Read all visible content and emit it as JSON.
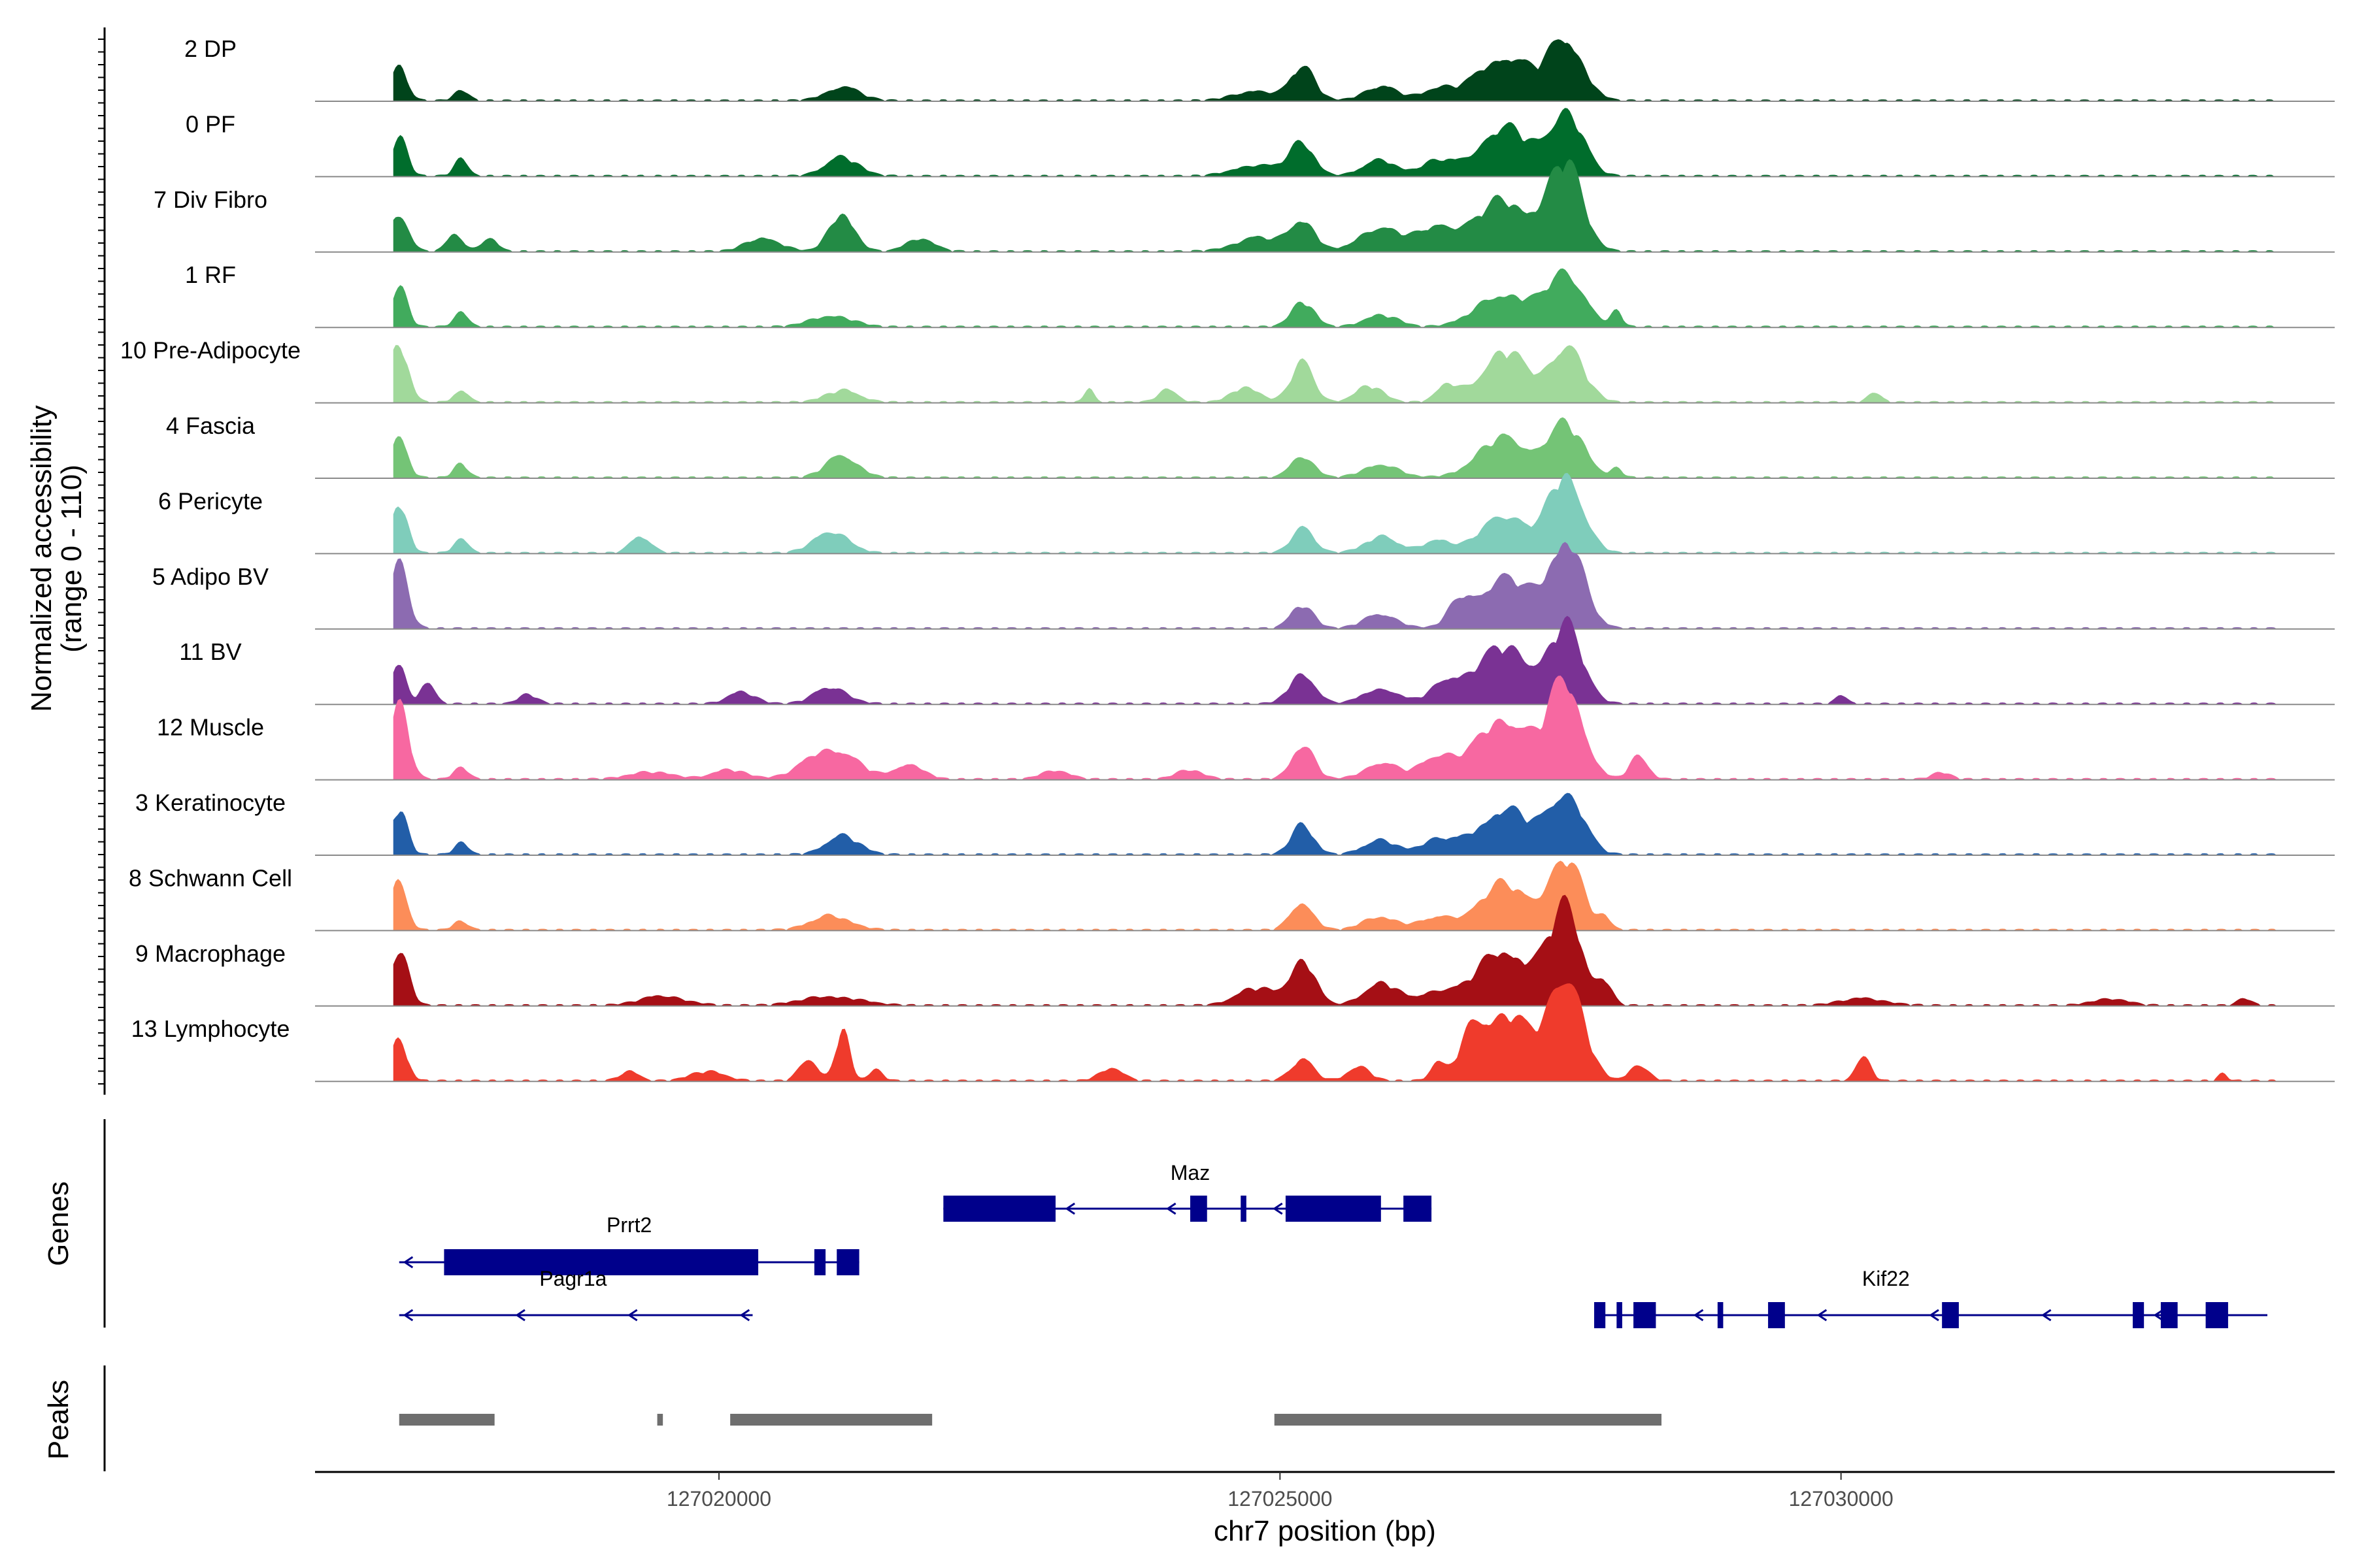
{
  "chart_data": {
    "type": "area",
    "title": "",
    "y_axis_label": "Normalized accessibility",
    "y_axis_range_label": "(range 0 - 110)",
    "ylim": [
      0,
      110
    ],
    "x_axis_label": "chr7 position (bp)",
    "xlim": [
      127016400,
      127034400
    ],
    "x_ticks": [
      127020000,
      127025000,
      127030000
    ],
    "x_tick_labels": [
      "127020000",
      "127025000",
      "127030000"
    ],
    "tracks": [
      {
        "name": "2 DP",
        "color": "#00441b",
        "peaks": [
          [
            127017150,
            30,
            70
          ],
          [
            127017700,
            10,
            60
          ],
          [
            127021100,
            12,
            150
          ],
          [
            127024800,
            8,
            200
          ],
          [
            127025200,
            28,
            110
          ],
          [
            127025900,
            12,
            150
          ],
          [
            127026400,
            10,
            140
          ],
          [
            127027000,
            40,
            240
          ],
          [
            127027550,
            55,
            150
          ]
        ]
      },
      {
        "name": "0 PF",
        "color": "#006d2c",
        "peaks": [
          [
            127017150,
            35,
            70
          ],
          [
            127017700,
            14,
            60
          ],
          [
            127021100,
            16,
            150
          ],
          [
            127024800,
            10,
            200
          ],
          [
            127025200,
            28,
            110
          ],
          [
            127025900,
            14,
            150
          ],
          [
            127026400,
            12,
            140
          ],
          [
            127027000,
            42,
            240
          ],
          [
            127027550,
            55,
            150
          ]
        ]
      },
      {
        "name": "7 Div Fibro",
        "color": "#238b45",
        "peaks": [
          [
            127017150,
            35,
            80
          ],
          [
            127017650,
            15,
            70
          ],
          [
            127017950,
            12,
            70
          ],
          [
            127020400,
            12,
            150
          ],
          [
            127021100,
            35,
            110
          ],
          [
            127021800,
            12,
            120
          ],
          [
            127024800,
            12,
            200
          ],
          [
            127025200,
            28,
            110
          ],
          [
            127025900,
            22,
            180
          ],
          [
            127026400,
            20,
            160
          ],
          [
            127027000,
            45,
            260
          ],
          [
            127027550,
            75,
            150
          ]
        ]
      },
      {
        "name": "1 RF",
        "color": "#41ab5d",
        "peaks": [
          [
            127017150,
            35,
            70
          ],
          [
            127017700,
            14,
            60
          ],
          [
            127021000,
            10,
            180
          ],
          [
            127025200,
            22,
            100
          ],
          [
            127025900,
            10,
            150
          ],
          [
            127027000,
            30,
            230
          ],
          [
            127027550,
            48,
            160
          ],
          [
            127028000,
            12,
            50
          ]
        ]
      },
      {
        "name": "10 Pre-Adipocyte",
        "color": "#a1d99b",
        "peaks": [
          [
            127017150,
            50,
            80
          ],
          [
            127017700,
            10,
            60
          ],
          [
            127021100,
            10,
            150
          ],
          [
            127023300,
            12,
            40
          ],
          [
            127024000,
            12,
            80
          ],
          [
            127024700,
            14,
            120
          ],
          [
            127025200,
            35,
            100
          ],
          [
            127025800,
            14,
            120
          ],
          [
            127026500,
            14,
            100
          ],
          [
            127027000,
            45,
            200
          ],
          [
            127027550,
            50,
            150
          ],
          [
            127030300,
            8,
            60
          ]
        ]
      },
      {
        "name": "4 Fascia",
        "color": "#74c476",
        "peaks": [
          [
            127017150,
            40,
            70
          ],
          [
            127017700,
            12,
            60
          ],
          [
            127021100,
            20,
            140
          ],
          [
            127025200,
            20,
            100
          ],
          [
            127025900,
            12,
            150
          ],
          [
            127027000,
            35,
            230
          ],
          [
            127027550,
            45,
            160
          ],
          [
            127028000,
            8,
            50
          ]
        ]
      },
      {
        "name": "6 Pericyte",
        "color": "#7fcdbb",
        "peaks": [
          [
            127017150,
            45,
            70
          ],
          [
            127017700,
            14,
            60
          ],
          [
            127019300,
            14,
            90
          ],
          [
            127021000,
            20,
            150
          ],
          [
            127025200,
            22,
            100
          ],
          [
            127025900,
            14,
            150
          ],
          [
            127026400,
            12,
            120
          ],
          [
            127027000,
            35,
            200
          ],
          [
            127027550,
            70,
            150
          ]
        ]
      },
      {
        "name": "5 Adipo BV",
        "color": "#8c6bb1",
        "peaks": [
          [
            127017150,
            55,
            80
          ],
          [
            127025200,
            20,
            100
          ],
          [
            127025900,
            12,
            150
          ],
          [
            127026600,
            18,
            100
          ],
          [
            127027000,
            45,
            230
          ],
          [
            127027550,
            80,
            150
          ]
        ]
      },
      {
        "name": "11 BV",
        "color": "#7a3294",
        "peaks": [
          [
            127017150,
            40,
            60
          ],
          [
            127017400,
            20,
            60
          ],
          [
            127018300,
            8,
            80
          ],
          [
            127020200,
            10,
            120
          ],
          [
            127021000,
            14,
            150
          ],
          [
            127025200,
            28,
            110
          ],
          [
            127025900,
            14,
            150
          ],
          [
            127026500,
            18,
            150
          ],
          [
            127027000,
            50,
            240
          ],
          [
            127027550,
            65,
            150
          ],
          [
            127030000,
            8,
            50
          ]
        ]
      },
      {
        "name": "12 Muscle",
        "color": "#f768a1",
        "peaks": [
          [
            127017150,
            70,
            80
          ],
          [
            127017700,
            12,
            60
          ],
          [
            127019400,
            6,
            200
          ],
          [
            127020100,
            8,
            150
          ],
          [
            127021000,
            28,
            220
          ],
          [
            127021700,
            14,
            120
          ],
          [
            127023000,
            8,
            120
          ],
          [
            127024200,
            8,
            120
          ],
          [
            127025200,
            30,
            100
          ],
          [
            127025900,
            14,
            150
          ],
          [
            127026400,
            20,
            150
          ],
          [
            127027000,
            55,
            240
          ],
          [
            127027550,
            85,
            150
          ],
          [
            127028200,
            20,
            80
          ],
          [
            127030900,
            6,
            80
          ]
        ]
      },
      {
        "name": "3 Keratinocyte",
        "color": "#225ea8",
        "peaks": [
          [
            127017150,
            40,
            70
          ],
          [
            127017700,
            10,
            60
          ],
          [
            127021100,
            16,
            150
          ],
          [
            127025200,
            25,
            100
          ],
          [
            127025900,
            12,
            150
          ],
          [
            127026400,
            12,
            150
          ],
          [
            127027000,
            40,
            240
          ],
          [
            127027550,
            55,
            150
          ]
        ]
      },
      {
        "name": "8 Schwann Cell",
        "color": "#fc8d59",
        "peaks": [
          [
            127017150,
            45,
            70
          ],
          [
            127017700,
            8,
            60
          ],
          [
            127021000,
            12,
            180
          ],
          [
            127025200,
            25,
            100
          ],
          [
            127025900,
            12,
            150
          ],
          [
            127026400,
            10,
            150
          ],
          [
            127027000,
            40,
            230
          ],
          [
            127027550,
            60,
            150
          ],
          [
            127027900,
            10,
            50
          ]
        ]
      },
      {
        "name": "9 Macrophage",
        "color": "#a50f15",
        "peaks": [
          [
            127017150,
            50,
            80
          ],
          [
            127019500,
            8,
            200
          ],
          [
            127021000,
            8,
            250
          ],
          [
            127024800,
            15,
            180
          ],
          [
            127025200,
            40,
            110
          ],
          [
            127025900,
            20,
            150
          ],
          [
            127026400,
            12,
            150
          ],
          [
            127027000,
            50,
            240
          ],
          [
            127027550,
            85,
            150
          ],
          [
            127027900,
            18,
            60
          ],
          [
            127030200,
            6,
            200
          ],
          [
            127032400,
            6,
            150
          ],
          [
            127033600,
            6,
            60
          ]
        ]
      },
      {
        "name": "13 Lymphocyte",
        "color": "#ef3b2c",
        "peaks": [
          [
            127017150,
            35,
            70
          ],
          [
            127019200,
            8,
            80
          ],
          [
            127019900,
            8,
            150
          ],
          [
            127020800,
            20,
            80
          ],
          [
            127021100,
            45,
            60
          ],
          [
            127021400,
            10,
            60
          ],
          [
            127023500,
            12,
            100
          ],
          [
            127025200,
            18,
            100
          ],
          [
            127025700,
            12,
            100
          ],
          [
            127026400,
            14,
            60
          ],
          [
            127026700,
            25,
            100
          ],
          [
            127027000,
            60,
            230
          ],
          [
            127027550,
            95,
            150
          ],
          [
            127028200,
            15,
            80
          ],
          [
            127030200,
            25,
            60
          ],
          [
            127033400,
            6,
            40
          ]
        ]
      }
    ],
    "genes_track_label": "Genes",
    "genes": [
      {
        "name": "Maz",
        "strand": "-",
        "start": 127022000,
        "end": 127026350,
        "row": 0,
        "label_pos": 127024200,
        "exons": [
          [
            127022000,
            127023000
          ],
          [
            127024200,
            127024350
          ],
          [
            127024650,
            127024700
          ],
          [
            127025050,
            127025900
          ],
          [
            127026100,
            127026350
          ]
        ],
        "arrows": [
          127023100,
          127024000,
          127024950
        ]
      },
      {
        "name": "Prrt2",
        "strand": "-",
        "start": 127017150,
        "end": 127021250,
        "row": 1,
        "label_pos": 127019200,
        "exons": [
          [
            127017550,
            127020350
          ],
          [
            127020850,
            127020950
          ],
          [
            127021050,
            127021250
          ]
        ],
        "arrows": [
          127017200
        ]
      },
      {
        "name": "Pagr1a",
        "strand": "-",
        "start": 127017150,
        "end": 127020300,
        "row": 2,
        "label_pos": 127018700,
        "exons": [],
        "arrows": [
          127017200,
          127018200,
          127019200,
          127020200
        ]
      },
      {
        "name": "Kif22",
        "strand": "-",
        "start": 127027800,
        "end": 127033800,
        "row": 2,
        "label_pos": 127030400,
        "exons": [
          [
            127027800,
            127027900
          ],
          [
            127028000,
            127028050
          ],
          [
            127028150,
            127028350
          ],
          [
            127028900,
            127028950
          ],
          [
            127029350,
            127029500
          ],
          [
            127030900,
            127031050
          ],
          [
            127032600,
            127032700
          ],
          [
            127032850,
            127033000
          ],
          [
            127033250,
            127033450
          ]
        ],
        "arrows": [
          127028700,
          127029800,
          127030800,
          127031800,
          127032800
        ]
      }
    ],
    "peaks_track_label": "Peaks",
    "peaks_regions": [
      [
        127017150,
        127018000
      ],
      [
        127019450,
        127019500
      ],
      [
        127020100,
        127021900
      ],
      [
        127024950,
        127028400
      ]
    ]
  }
}
